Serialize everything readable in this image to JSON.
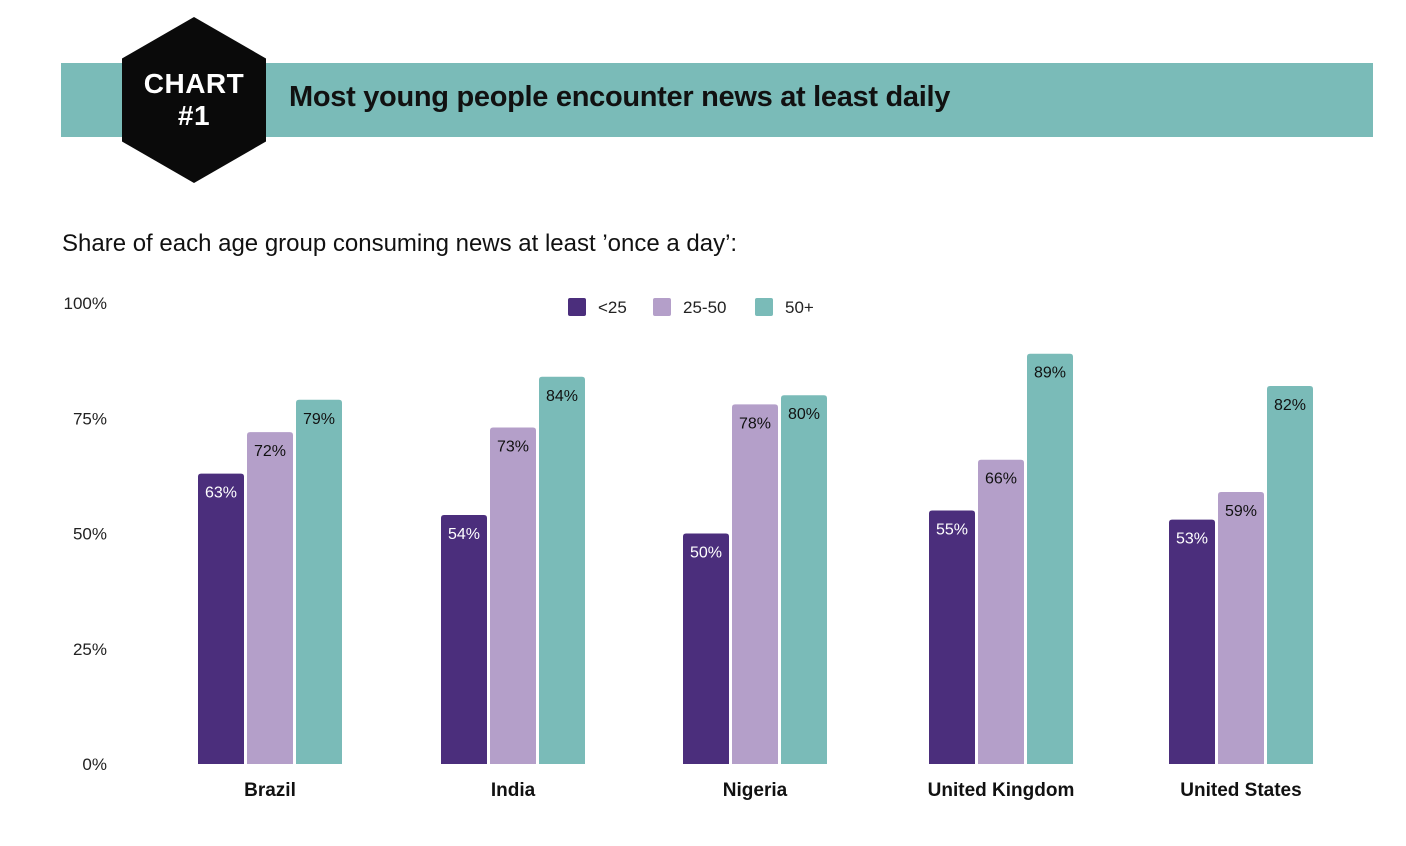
{
  "header": {
    "badge_line1": "CHART",
    "badge_line2": "#1",
    "title": "Most young people encounter news at least daily",
    "subtitle": "Share of each age group consuming news at least ’once a day’:"
  },
  "colors": {
    "banner": "#7abbb8",
    "badge": "#0a0a0a",
    "under25": "#4b2e7c",
    "age25_50": "#b49fc9",
    "age50plus": "#7abbb8",
    "label_dark_bg": "#ffffff",
    "label_light_bg": "#111111"
  },
  "chart_data": {
    "type": "bar",
    "title": "Most young people encounter news at least daily",
    "subtitle": "Share of each age group consuming news at least ’once a day’:",
    "categories": [
      "Brazil",
      "India",
      "Nigeria",
      "United Kingdom",
      "United States"
    ],
    "series": [
      {
        "name": "<25",
        "values": [
          63,
          54,
          50,
          55,
          53
        ]
      },
      {
        "name": "25-50",
        "values": [
          72,
          73,
          78,
          66,
          59
        ]
      },
      {
        "name": "50+",
        "values": [
          79,
          84,
          80,
          89,
          82
        ]
      }
    ],
    "ylim": [
      0,
      100
    ],
    "yticks": [
      "0%",
      "25%",
      "50%",
      "75%",
      "100%"
    ],
    "ytick_values": [
      0,
      25,
      50,
      75,
      100
    ],
    "value_suffix": "%",
    "legend_position": "top-center",
    "grid": false,
    "xlabel": "",
    "ylabel": ""
  }
}
